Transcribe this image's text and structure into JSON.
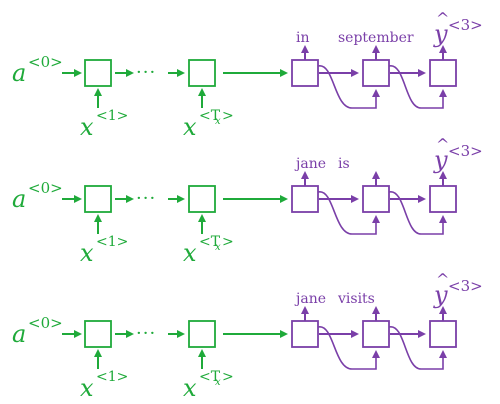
{
  "colors": {
    "encoder": "#1faa3a",
    "decoder": "#7a3fa8"
  },
  "rows": [
    {
      "input_a_base": "a",
      "input_a_sup": "<0>",
      "x_first_base": "x",
      "x_first_sup": "<1>",
      "x_last_base": "x",
      "x_last_sup": "<T",
      "x_last_sub": "x",
      "x_last_close": ">",
      "dots": "···",
      "decoder_outputs": [
        "in",
        "september"
      ],
      "yhat_base": "y",
      "yhat_hat": "^",
      "yhat_sup": "<3>"
    },
    {
      "input_a_base": "a",
      "input_a_sup": "<0>",
      "x_first_base": "x",
      "x_first_sup": "<1>",
      "x_last_base": "x",
      "x_last_sup": "<T",
      "x_last_sub": "x",
      "x_last_close": ">",
      "dots": "···",
      "decoder_outputs": [
        "jane",
        "is"
      ],
      "yhat_base": "y",
      "yhat_hat": "^",
      "yhat_sup": "<3>"
    },
    {
      "input_a_base": "a",
      "input_a_sup": "<0>",
      "x_first_base": "x",
      "x_first_sup": "<1>",
      "x_last_base": "x",
      "x_last_sup": "<T",
      "x_last_sub": "x",
      "x_last_close": ">",
      "dots": "···",
      "decoder_outputs": [
        "jane",
        "visits"
      ],
      "yhat_base": "y",
      "yhat_hat": "^",
      "yhat_sup": "<3>"
    }
  ]
}
